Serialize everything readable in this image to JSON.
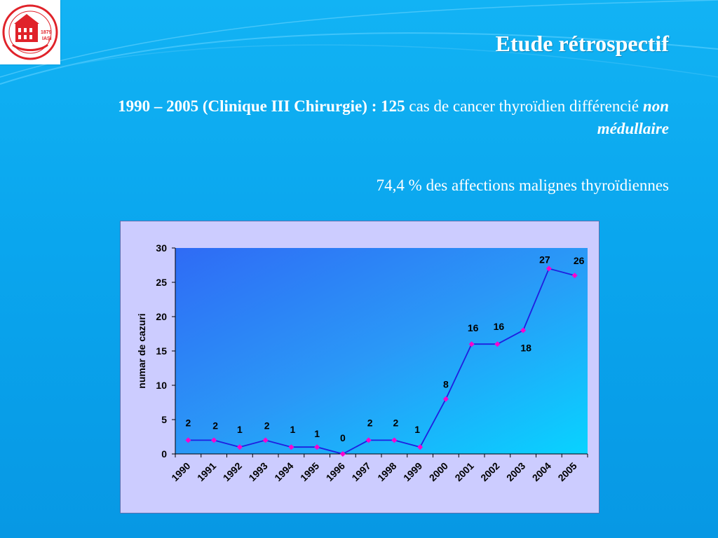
{
  "slide": {
    "title": "Etude rétrospectif",
    "subtitle_bold": "1990 – 2005 (Clinique III Chirurgie) : 125",
    "subtitle_plain": " cas  de cancer thyroïdien différencié ",
    "subtitle_italic": "non médullaire",
    "stat_line": "74,4 % des affections malignes thyroïdiennes",
    "logo": {
      "icon": "university-seal-icon",
      "text": "UNIVERSITATEA DE MEDICINĂ ŞI FARMACIE 1879 IAŞI",
      "color": "#e0232a"
    }
  },
  "chart_data": {
    "type": "line",
    "x": [
      "1990",
      "1991",
      "1992",
      "1993",
      "1994",
      "1995",
      "1996",
      "1997",
      "1998",
      "1999",
      "2000",
      "2001",
      "2002",
      "2003",
      "2004",
      "2005"
    ],
    "series": [
      {
        "values": [
          2,
          2,
          1,
          2,
          1,
          1,
          0,
          2,
          2,
          1,
          8,
          16,
          16,
          18,
          27,
          26
        ],
        "color": "#1f1fe0",
        "marker_color": "#ff00cc"
      }
    ],
    "xlabel": "",
    "ylabel": "numar de cazuri",
    "ylim": [
      0,
      30
    ],
    "yticks": [
      0,
      5,
      10,
      15,
      20,
      25,
      30
    ],
    "data_labels": [
      "2",
      "2",
      "1",
      "2",
      "1",
      "1",
      "0",
      "2",
      "2",
      "1",
      "8",
      "16",
      "16",
      "18",
      "27",
      "26"
    ],
    "grid": false,
    "plot_background": "gradient blue"
  }
}
